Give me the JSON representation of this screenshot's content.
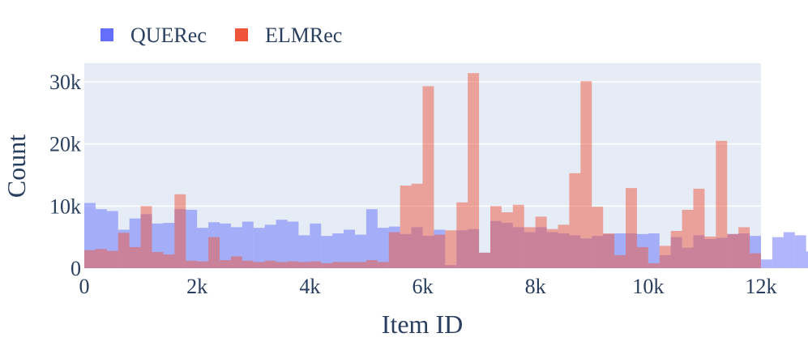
{
  "chart_data": {
    "type": "bar",
    "subtype": "overlaid-histogram",
    "title": "",
    "xlabel": "Item ID",
    "ylabel": "Count",
    "xlim": [
      0,
      12000
    ],
    "ylim": [
      0,
      33000
    ],
    "bin_width": 200,
    "x_ticks": [
      0,
      2000,
      4000,
      6000,
      8000,
      10000,
      12000
    ],
    "x_tick_labels": [
      "0",
      "2k",
      "4k",
      "6k",
      "8k",
      "10k",
      "12k"
    ],
    "y_ticks": [
      0,
      10000,
      20000,
      30000
    ],
    "y_tick_labels": [
      "0",
      "10k",
      "20k",
      "30k"
    ],
    "grid": true,
    "legend_position": "top-left, horizontal",
    "plot_background": "#e5ecf6",
    "series": [
      {
        "name": "QUERec",
        "color": "#636efa",
        "values": [
          10500,
          9500,
          9200,
          6200,
          8000,
          8700,
          7200,
          7300,
          9500,
          9400,
          6500,
          7400,
          7200,
          6600,
          7500,
          6500,
          7000,
          7800,
          7500,
          5300,
          7200,
          5200,
          5600,
          6200,
          5400,
          9500,
          6500,
          6700,
          5500,
          6600,
          5200,
          6200,
          500,
          6100,
          6300,
          2500,
          7600,
          7300,
          6600,
          5800,
          6600,
          5800,
          5600,
          5300,
          4800,
          5200,
          5500,
          5600,
          5600,
          5500,
          5600,
          2100,
          5000,
          3300,
          5300,
          4700,
          4900,
          5500,
          5600,
          5200,
          1400,
          5000,
          5800,
          5300,
          2700
        ]
      },
      {
        "name": "ELMRec",
        "color": "#ef553b",
        "values": [
          2900,
          3100,
          2800,
          5700,
          3400,
          10000,
          2600,
          2200,
          11900,
          1200,
          1100,
          5000,
          1300,
          1900,
          1200,
          1000,
          1200,
          1000,
          1100,
          1000,
          1100,
          800,
          1000,
          1000,
          1000,
          1300,
          1000,
          5800,
          13300,
          13600,
          29300,
          5400,
          6100,
          10600,
          31400,
          2500,
          10000,
          9000,
          10200,
          6600,
          8300,
          6300,
          7000,
          15300,
          30100,
          9900,
          5600,
          2100,
          12900,
          3400,
          800,
          3600,
          6000,
          9400,
          12800,
          5100,
          20500,
          5500,
          6600,
          2400
        ]
      }
    ]
  }
}
